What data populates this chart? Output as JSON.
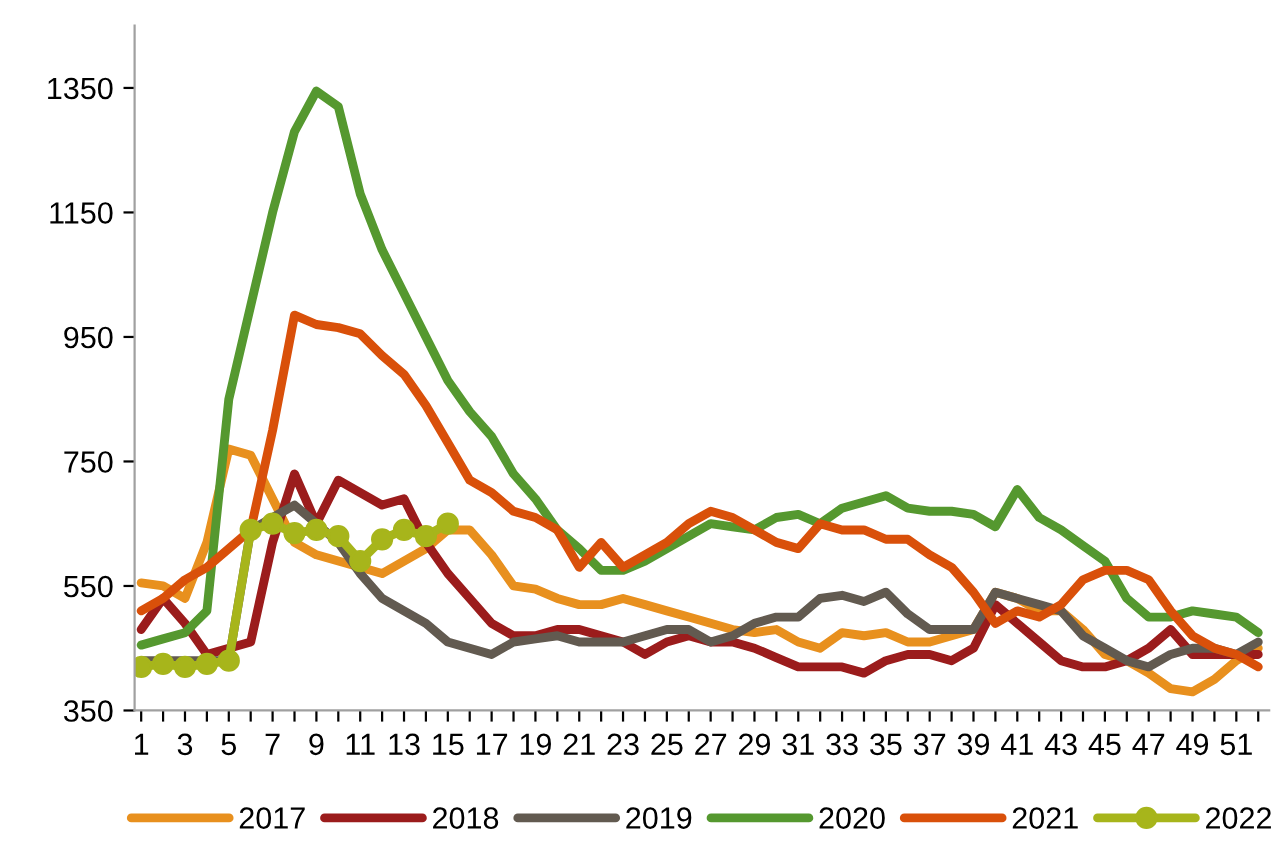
{
  "chart_data": {
    "type": "line",
    "categories": [
      "1",
      null,
      "3",
      null,
      "5",
      null,
      "7",
      null,
      "9",
      null,
      "11",
      null,
      "13",
      null,
      "15",
      null,
      "17",
      null,
      "19",
      null,
      "21",
      null,
      "23",
      null,
      "25",
      null,
      "27",
      null,
      "29",
      null,
      "31",
      null,
      "33",
      null,
      "35",
      null,
      "37",
      null,
      "39",
      null,
      "41",
      null,
      "43",
      null,
      "45",
      null,
      "47",
      null,
      "49",
      null,
      "51",
      null
    ],
    "ylim": [
      350,
      1450
    ],
    "yticks": [
      350,
      550,
      750,
      950,
      1150,
      1350
    ],
    "grid": false,
    "legend": "bottom",
    "line_style": "solid",
    "series": [
      {
        "name": "2017",
        "color": "#e8901e",
        "values": [
          555,
          550,
          530,
          620,
          770,
          760,
          690,
          620,
          600,
          590,
          580,
          570,
          590,
          610,
          640,
          640,
          600,
          550,
          545,
          530,
          520,
          520,
          530,
          520,
          510,
          500,
          490,
          480,
          475,
          480,
          460,
          450,
          475,
          470,
          475,
          460,
          460,
          470,
          480,
          540,
          530,
          510,
          510,
          480,
          440,
          430,
          410,
          385,
          380,
          400,
          430,
          450
        ]
      },
      {
        "name": "2018",
        "color": "#9b1c1c",
        "values": [
          480,
          530,
          490,
          440,
          450,
          460,
          620,
          730,
          650,
          720,
          700,
          680,
          690,
          620,
          570,
          530,
          490,
          470,
          470,
          480,
          480,
          470,
          460,
          440,
          460,
          470,
          460,
          460,
          450,
          435,
          420,
          420,
          420,
          410,
          430,
          440,
          440,
          430,
          450,
          520,
          490,
          460,
          430,
          420,
          420,
          430,
          450,
          480,
          440,
          440,
          440,
          440
        ]
      },
      {
        "name": "2019",
        "color": "#625a50",
        "values": [
          430,
          430,
          430,
          430,
          430,
          640,
          660,
          680,
          650,
          620,
          570,
          530,
          510,
          490,
          460,
          450,
          440,
          460,
          465,
          470,
          460,
          460,
          460,
          470,
          480,
          480,
          460,
          470,
          490,
          500,
          500,
          530,
          535,
          525,
          540,
          505,
          480,
          480,
          480,
          540,
          530,
          520,
          510,
          470,
          450,
          430,
          420,
          440,
          450,
          450,
          440,
          460
        ]
      },
      {
        "name": "2020",
        "color": "#55982f",
        "values": [
          455,
          465,
          475,
          510,
          850,
          1000,
          1150,
          1280,
          1345,
          1320,
          1180,
          1090,
          1020,
          950,
          880,
          830,
          790,
          730,
          690,
          640,
          610,
          575,
          575,
          590,
          610,
          630,
          650,
          645,
          640,
          660,
          665,
          650,
          675,
          685,
          695,
          675,
          670,
          670,
          665,
          645,
          705,
          660,
          640,
          615,
          590,
          530,
          500,
          500,
          510,
          505,
          500,
          475
        ]
      },
      {
        "name": "2021",
        "color": "#d9500a",
        "values": [
          510,
          530,
          560,
          580,
          610,
          640,
          800,
          985,
          970,
          965,
          955,
          920,
          890,
          840,
          780,
          720,
          700,
          670,
          660,
          640,
          580,
          620,
          580,
          600,
          620,
          650,
          670,
          660,
          640,
          620,
          610,
          650,
          640,
          640,
          625,
          625,
          600,
          580,
          540,
          490,
          510,
          500,
          520,
          560,
          575,
          575,
          560,
          510,
          470,
          450,
          440,
          420
        ]
      },
      {
        "name": "2022",
        "color": "#a7b51b",
        "marker": "circle",
        "values": [
          420,
          425,
          420,
          425,
          430,
          640,
          650,
          635,
          640,
          630,
          590,
          625,
          640,
          630,
          650,
          null,
          null,
          null,
          null,
          null,
          null,
          null,
          null,
          null,
          null,
          null,
          null,
          null,
          null,
          null,
          null,
          null,
          null,
          null,
          null,
          null,
          null,
          null,
          null,
          null,
          null,
          null,
          null,
          null,
          null,
          null,
          null,
          null,
          null,
          null,
          null,
          null
        ]
      }
    ]
  }
}
